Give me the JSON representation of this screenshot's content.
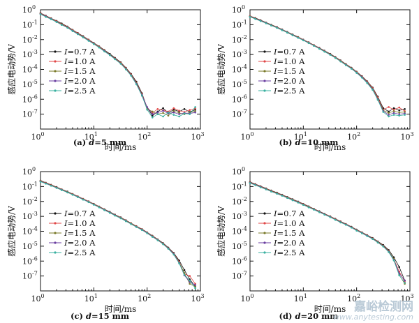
{
  "watermark": {
    "title": "嘉峪检测网",
    "url": "www.anytesting.com"
  },
  "chart_data": [
    {
      "type": "line",
      "caption_prefix": "(a) ",
      "caption_var": "d",
      "caption_value": "=5 mm",
      "xlabel": "时间/ms",
      "ylabel": "感应电动势/V",
      "xscale": "log",
      "yscale": "log",
      "xlim": [
        1,
        1000
      ],
      "ylim": [
        1e-08,
        1
      ],
      "x_ticks": [
        {
          "e": "0"
        },
        {
          "e": "1"
        },
        {
          "e": "2"
        },
        {
          "e": "3"
        }
      ],
      "y_ticks": [
        {
          "e": "0"
        },
        {
          "e": "-1"
        },
        {
          "e": "-2"
        },
        {
          "e": "-3"
        },
        {
          "e": "-4"
        },
        {
          "e": "-5"
        },
        {
          "e": "-6"
        },
        {
          "e": "-7"
        }
      ],
      "legend_position": "left-middle",
      "x": [
        1,
        1.26,
        1.58,
        2,
        2.5,
        3.2,
        4,
        5,
        6.3,
        8,
        10,
        12.6,
        15.8,
        20,
        25,
        32,
        40,
        50,
        63,
        80,
        100,
        126,
        158,
        200,
        250,
        316,
        400,
        500,
        630,
        800
      ],
      "series": [
        {
          "name": "=0.7 A",
          "color": "#111111",
          "values": [
            0.6,
            0.4,
            0.27,
            0.18,
            0.12,
            0.075,
            0.045,
            0.028,
            0.017,
            0.01,
            0.006,
            0.0035,
            0.002,
            0.0011,
            0.0006,
            0.0003,
            0.00013,
            5e-05,
            1.5e-05,
            2.5e-06,
            2.6e-07,
            8e-08,
            1.5e-07,
            2.5e-07,
            1.2e-07,
            2e-07,
            1.5e-07,
            2.2e-07,
            1.4e-07,
            2e-07
          ]
        },
        {
          "name": "=1.0 A",
          "color": "#e04848",
          "values": [
            0.58,
            0.38,
            0.26,
            0.17,
            0.11,
            0.072,
            0.043,
            0.027,
            0.016,
            0.0096,
            0.0057,
            0.0033,
            0.0019,
            0.001,
            0.00055,
            0.00028,
            0.00012,
            4.6e-05,
            1.3e-05,
            2.2e-06,
            2.8e-07,
            1.2e-07,
            2.2e-07,
            1.8e-07,
            1.5e-07,
            2.5e-07,
            1.7e-07,
            1.4e-07,
            1.9e-07,
            2.4e-07
          ]
        },
        {
          "name": "=1.5 A",
          "color": "#7a7a2a",
          "values": [
            0.55,
            0.36,
            0.25,
            0.16,
            0.105,
            0.068,
            0.041,
            0.025,
            0.015,
            0.009,
            0.0054,
            0.0031,
            0.0018,
            0.001,
            0.00052,
            0.00026,
            0.00011,
            4.2e-05,
            1.2e-05,
            2e-06,
            2.2e-07,
            1.5e-07,
            1e-07,
            1.2e-07,
            8e-08,
            1.6e-07,
            1.2e-07,
            1e-07,
            1.3e-07,
            1.6e-07
          ]
        },
        {
          "name": "=2.0 A",
          "color": "#6a3ea0",
          "values": [
            0.53,
            0.35,
            0.24,
            0.155,
            0.1,
            0.065,
            0.039,
            0.024,
            0.0145,
            0.0087,
            0.0052,
            0.003,
            0.0017,
            0.00095,
            0.0005,
            0.00025,
            0.000105,
            4e-05,
            1.1e-05,
            1.9e-06,
            3e-07,
            1e-07,
            1.3e-07,
            1.7e-07,
            1.1e-07,
            1.3e-07,
            1e-07,
            1.2e-07,
            1.1e-07,
            1.3e-07
          ]
        },
        {
          "name": "=2.5 A",
          "color": "#3ab0a0",
          "values": [
            0.5,
            0.33,
            0.23,
            0.15,
            0.097,
            0.062,
            0.037,
            0.023,
            0.014,
            0.0083,
            0.005,
            0.0029,
            0.0016,
            0.0009,
            0.00048,
            0.00024,
            0.0001,
            3.8e-05,
            1e-05,
            1.7e-06,
            2e-07,
            6e-08,
            1e-07,
            7e-08,
            1.3e-07,
            9e-08,
            7e-08,
            1.1e-07,
            1e-07,
            3e-07
          ]
        }
      ]
    },
    {
      "type": "line",
      "caption_prefix": "(b) ",
      "caption_var": "d",
      "caption_value": "=10 mm",
      "xlabel": "时间/ms",
      "ylabel": "感应电动势/V",
      "xscale": "log",
      "yscale": "log",
      "xlim": [
        1,
        1000
      ],
      "ylim": [
        1e-08,
        1
      ],
      "x_ticks": [
        {
          "e": "0"
        },
        {
          "e": "1"
        },
        {
          "e": "2"
        },
        {
          "e": "3"
        }
      ],
      "y_ticks": [
        {
          "e": "0"
        },
        {
          "e": "-1"
        },
        {
          "e": "-2"
        },
        {
          "e": "-3"
        },
        {
          "e": "-4"
        },
        {
          "e": "-5"
        },
        {
          "e": "-6"
        },
        {
          "e": "-7"
        }
      ],
      "legend_position": "left-middle",
      "x": [
        1,
        1.26,
        1.58,
        2,
        2.5,
        3.2,
        4,
        5,
        6.3,
        8,
        10,
        12.6,
        15.8,
        20,
        25,
        32,
        40,
        50,
        63,
        80,
        100,
        126,
        158,
        200,
        250,
        316,
        400,
        500,
        630,
        800
      ],
      "series": [
        {
          "name": "=0.7 A",
          "color": "#111111",
          "values": [
            0.38,
            0.28,
            0.2,
            0.14,
            0.1,
            0.07,
            0.048,
            0.033,
            0.022,
            0.015,
            0.01,
            0.0066,
            0.0043,
            0.0028,
            0.0018,
            0.0011,
            0.00068,
            0.0004,
            0.00023,
            0.00013,
            7e-05,
            3.5e-05,
            1.6e-05,
            6e-06,
            1.5e-06,
            2.5e-07,
            1.5e-07,
            2.5e-07,
            1.8e-07,
            2.2e-07
          ]
        },
        {
          "name": "=1.0 A",
          "color": "#e04848",
          "values": [
            0.37,
            0.27,
            0.19,
            0.135,
            0.097,
            0.068,
            0.046,
            0.032,
            0.021,
            0.0145,
            0.0097,
            0.0064,
            0.0042,
            0.0027,
            0.0017,
            0.00105,
            0.00065,
            0.00038,
            0.00022,
            0.000125,
            6.7e-05,
            3.3e-05,
            1.5e-05,
            5.5e-06,
            1.3e-06,
            2e-07,
            3e-07,
            2e-07,
            2.8e-07,
            1.6e-07
          ]
        },
        {
          "name": "=1.5 A",
          "color": "#7a7a2a",
          "values": [
            0.35,
            0.26,
            0.185,
            0.13,
            0.094,
            0.065,
            0.045,
            0.031,
            0.0205,
            0.014,
            0.0094,
            0.0062,
            0.004,
            0.0026,
            0.00165,
            0.001,
            0.00062,
            0.00036,
            0.00021,
            0.00012,
            6.4e-05,
            3.1e-05,
            1.4e-05,
            5e-06,
            1.1e-06,
            1.8e-07,
            1.2e-07,
            1.6e-07,
            1.3e-07,
            1.4e-07
          ]
        },
        {
          "name": "=2.0 A",
          "color": "#6a3ea0",
          "values": [
            0.34,
            0.25,
            0.18,
            0.128,
            0.091,
            0.063,
            0.044,
            0.03,
            0.02,
            0.0135,
            0.0091,
            0.006,
            0.0039,
            0.0025,
            0.0016,
            0.00098,
            0.0006,
            0.00035,
            0.0002,
            0.000115,
            6.1e-05,
            3e-05,
            1.3e-05,
            4.6e-06,
            1e-06,
            1.6e-07,
            9e-08,
            1.2e-07,
            1e-07,
            1.1e-07
          ]
        },
        {
          "name": "=2.5 A",
          "color": "#3ab0a0",
          "values": [
            0.33,
            0.24,
            0.175,
            0.124,
            0.088,
            0.061,
            0.042,
            0.029,
            0.0195,
            0.013,
            0.0088,
            0.0058,
            0.0038,
            0.0024,
            0.00155,
            0.00095,
            0.00058,
            0.00034,
            0.00019,
            0.00011,
            5.8e-05,
            2.8e-05,
            1.2e-05,
            4.2e-06,
            9e-07,
            1.4e-07,
            7e-08,
            9e-08,
            8e-08,
            9e-08
          ]
        }
      ]
    },
    {
      "type": "line",
      "caption_prefix": "(c) ",
      "caption_var": "d",
      "caption_value": "=15 mm",
      "xlabel": "时间/ms",
      "ylabel": "感应电动势/V",
      "xscale": "log",
      "yscale": "log",
      "xlim": [
        1,
        1000
      ],
      "ylim": [
        1e-08,
        1
      ],
      "x_ticks": [
        {
          "e": "0"
        },
        {
          "e": "1"
        },
        {
          "e": "2"
        },
        {
          "e": "3"
        }
      ],
      "y_ticks": [
        {
          "e": "0"
        },
        {
          "e": "-1"
        },
        {
          "e": "-2"
        },
        {
          "e": "-3"
        },
        {
          "e": "-4"
        },
        {
          "e": "-5"
        },
        {
          "e": "-6"
        },
        {
          "e": "-7"
        }
      ],
      "legend_position": "left-middle",
      "x": [
        1,
        1.26,
        1.58,
        2,
        2.5,
        3.2,
        4,
        5,
        6.3,
        8,
        10,
        12.6,
        15.8,
        20,
        25,
        32,
        40,
        50,
        63,
        80,
        100,
        126,
        158,
        200,
        250,
        316,
        400,
        500,
        630,
        800
      ],
      "series": [
        {
          "name": "=0.7 A",
          "color": "#111111",
          "values": [
            0.25,
            0.18,
            0.13,
            0.092,
            0.065,
            0.046,
            0.032,
            0.022,
            0.015,
            0.0102,
            0.0069,
            0.0046,
            0.003,
            0.002,
            0.0013,
            0.00085,
            0.00055,
            0.00035,
            0.00022,
            0.00014,
            8.5e-05,
            5e-05,
            2.9e-05,
            1.6e-05,
            8e-06,
            3.5e-06,
            1.1e-06,
            2.5e-07,
            6e-08,
            2e-08
          ]
        },
        {
          "name": "=1.0 A",
          "color": "#e04848",
          "values": [
            0.24,
            0.175,
            0.125,
            0.089,
            0.063,
            0.044,
            0.031,
            0.0215,
            0.0146,
            0.0099,
            0.0067,
            0.0045,
            0.0029,
            0.0019,
            0.00125,
            0.00082,
            0.00053,
            0.00034,
            0.00021,
            0.000135,
            8.2e-05,
            4.8e-05,
            2.8e-05,
            1.5e-05,
            7.5e-06,
            3.2e-06,
            9e-07,
            1.4e-07,
            1e-07,
            3e-08
          ]
        },
        {
          "name": "=1.5 A",
          "color": "#7a7a2a",
          "values": [
            0.23,
            0.168,
            0.12,
            0.086,
            0.061,
            0.043,
            0.03,
            0.0208,
            0.0141,
            0.0095,
            0.0064,
            0.0043,
            0.0028,
            0.00185,
            0.0012,
            0.00079,
            0.00051,
            0.00033,
            0.0002,
            0.00013,
            7.9e-05,
            4.6e-05,
            2.7e-05,
            1.45e-05,
            7.2e-06,
            3e-06,
            8e-07,
            1.6e-07,
            3e-08,
            2e-08
          ]
        },
        {
          "name": "=2.0 A",
          "color": "#6a3ea0",
          "values": [
            0.22,
            0.162,
            0.116,
            0.083,
            0.059,
            0.041,
            0.029,
            0.02,
            0.0136,
            0.0092,
            0.0062,
            0.0041,
            0.0027,
            0.0018,
            0.00116,
            0.00076,
            0.00049,
            0.00031,
            0.000195,
            0.000125,
            7.6e-05,
            4.4e-05,
            2.6e-05,
            1.4e-05,
            7e-06,
            2.9e-06,
            7.5e-07,
            1.1e-07,
            4e-08,
            2.5e-08
          ]
        },
        {
          "name": "=2.5 A",
          "color": "#3ab0a0",
          "values": [
            0.21,
            0.155,
            0.112,
            0.08,
            0.057,
            0.04,
            0.028,
            0.0193,
            0.0131,
            0.0089,
            0.006,
            0.004,
            0.0026,
            0.0017,
            0.00112,
            0.00073,
            0.00047,
            0.0003,
            0.00019,
            0.00012,
            7.3e-05,
            4.2e-05,
            2.5e-05,
            1.35e-05,
            6.7e-06,
            2.7e-06,
            7e-07,
            1.2e-07,
            5e-08,
            1.5e-08
          ]
        }
      ]
    },
    {
      "type": "line",
      "caption_prefix": "(d) ",
      "caption_var": "d",
      "caption_value": "=20 mm",
      "xlabel": "时间/ms",
      "ylabel": "感应电动势/V",
      "xscale": "log",
      "yscale": "log",
      "xlim": [
        1,
        1000
      ],
      "ylim": [
        1e-08,
        1
      ],
      "x_ticks": [
        {
          "e": "0"
        },
        {
          "e": "1"
        },
        {
          "e": "2"
        },
        {
          "e": "3"
        }
      ],
      "y_ticks": [
        {
          "e": "0"
        },
        {
          "e": "-1"
        },
        {
          "e": "-2"
        },
        {
          "e": "-3"
        },
        {
          "e": "-4"
        },
        {
          "e": "-5"
        },
        {
          "e": "-6"
        },
        {
          "e": "-7"
        }
      ],
      "legend_position": "left-middle",
      "x": [
        1,
        1.26,
        1.58,
        2,
        2.5,
        3.2,
        4,
        5,
        6.3,
        8,
        10,
        12.6,
        15.8,
        20,
        25,
        32,
        40,
        50,
        63,
        80,
        100,
        126,
        158,
        200,
        250,
        316,
        400,
        500,
        630,
        800
      ],
      "series": [
        {
          "name": "=0.7 A",
          "color": "#111111",
          "values": [
            0.2,
            0.145,
            0.105,
            0.075,
            0.054,
            0.039,
            0.028,
            0.02,
            0.014,
            0.0098,
            0.0068,
            0.0047,
            0.0032,
            0.0022,
            0.0015,
            0.001,
            0.00068,
            0.00046,
            0.00031,
            0.0002,
            0.00013,
            8.5e-05,
            5.5e-05,
            3.5e-05,
            2.1e-05,
            1.2e-05,
            5.5e-06,
            1.8e-06,
            4e-07,
            5e-08
          ]
        },
        {
          "name": "=1.0 A",
          "color": "#e04848",
          "values": [
            0.19,
            0.14,
            0.101,
            0.072,
            0.052,
            0.037,
            0.027,
            0.019,
            0.0135,
            0.0094,
            0.0065,
            0.0045,
            0.0031,
            0.0021,
            0.00145,
            0.00097,
            0.00065,
            0.00044,
            0.0003,
            0.00019,
            0.000125,
            8.2e-05,
            5.3e-05,
            3.3e-05,
            2e-05,
            1.1e-05,
            4.8e-06,
            1.3e-06,
            2e-07,
            4e-08
          ]
        },
        {
          "name": "=1.5 A",
          "color": "#7a7a2a",
          "values": [
            0.18,
            0.134,
            0.097,
            0.069,
            0.05,
            0.036,
            0.026,
            0.0183,
            0.013,
            0.009,
            0.0062,
            0.0043,
            0.003,
            0.002,
            0.0014,
            0.00093,
            0.00062,
            0.00042,
            0.00029,
            0.000185,
            0.00012,
            7.9e-05,
            5.1e-05,
            3.2e-05,
            1.9e-05,
            1.05e-05,
            4.5e-06,
            1.4e-06,
            1.2e-07,
            3e-08
          ]
        },
        {
          "name": "=2.0 A",
          "color": "#6a3ea0",
          "values": [
            0.175,
            0.129,
            0.093,
            0.066,
            0.048,
            0.034,
            0.025,
            0.0176,
            0.0124,
            0.0087,
            0.006,
            0.0041,
            0.0029,
            0.00195,
            0.00135,
            0.0009,
            0.0006,
            0.0004,
            0.00028,
            0.00018,
            0.000115,
            7.6e-05,
            4.9e-05,
            3.1e-05,
            1.8e-05,
            1e-05,
            4.2e-06,
            1.2e-06,
            1.5e-07,
            5e-08
          ]
        },
        {
          "name": "=2.5 A",
          "color": "#3ab0a0",
          "values": [
            0.168,
            0.124,
            0.089,
            0.064,
            0.046,
            0.033,
            0.024,
            0.017,
            0.012,
            0.0084,
            0.0058,
            0.004,
            0.0028,
            0.0019,
            0.0013,
            0.00087,
            0.00058,
            0.00039,
            0.00027,
            0.000175,
            0.00011,
            7.3e-05,
            4.7e-05,
            3e-05,
            1.75e-05,
            9.5e-06,
            4e-06,
            1.1e-06,
            1.1e-07,
            3.5e-08
          ]
        }
      ]
    }
  ]
}
